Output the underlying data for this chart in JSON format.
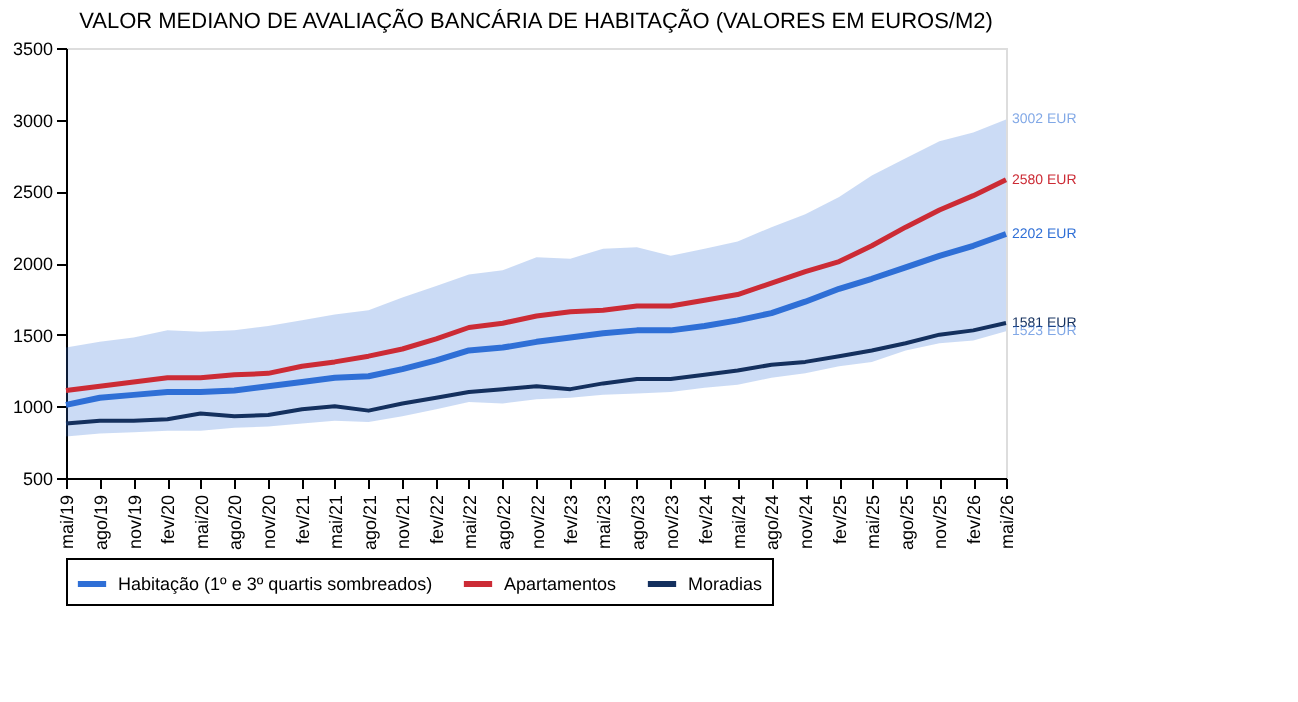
{
  "chart_data": {
    "type": "line",
    "title": "VALOR MEDIANO DE AVALIAÇÃO BANCÁRIA DE HABITAÇÃO (VALORES EM EUROS/M2)",
    "x": [
      "2019-05",
      "2019-08",
      "2019-11",
      "2020-02",
      "2020-05",
      "2020-08",
      "2020-11",
      "2021-02",
      "2021-05",
      "2021-08",
      "2021-11",
      "2022-02",
      "2022-05",
      "2022-08",
      "2022-11",
      "2023-02",
      "2023-05",
      "2023-08",
      "2023-11",
      "2024-02",
      "2024-05",
      "2024-08",
      "2024-11",
      "2025-02",
      "2025-05",
      "2025-08",
      "2025-11",
      "2026-02",
      "2026-05"
    ],
    "series": [
      {
        "name": "Habitação (1º e 3º quartis sombreados)",
        "color": "#2f6fd6",
        "values": [
          1010,
          1060,
          1080,
          1100,
          1100,
          1110,
          1140,
          1170,
          1200,
          1210,
          1260,
          1320,
          1390,
          1410,
          1450,
          1480,
          1510,
          1530,
          1530,
          1560,
          1600,
          1650,
          1730,
          1820,
          1890,
          1970,
          2050,
          2120,
          2202
        ],
        "lower": [
          790,
          810,
          820,
          830,
          830,
          850,
          860,
          880,
          900,
          890,
          930,
          980,
          1030,
          1020,
          1050,
          1060,
          1080,
          1090,
          1100,
          1130,
          1150,
          1200,
          1230,
          1280,
          1310,
          1390,
          1440,
          1460,
          1523
        ],
        "upper": [
          1410,
          1450,
          1480,
          1530,
          1520,
          1530,
          1560,
          1600,
          1640,
          1670,
          1760,
          1840,
          1920,
          1950,
          2040,
          2030,
          2100,
          2110,
          2050,
          2100,
          2150,
          2250,
          2340,
          2460,
          2610,
          2730,
          2850,
          2910,
          3002
        ]
      },
      {
        "name": "Apartamentos",
        "color": "#cc2b35",
        "values": [
          1110,
          1140,
          1170,
          1200,
          1200,
          1220,
          1230,
          1280,
          1310,
          1350,
          1400,
          1470,
          1550,
          1580,
          1630,
          1660,
          1670,
          1700,
          1700,
          1740,
          1780,
          1860,
          1940,
          2010,
          2120,
          2250,
          2370,
          2470,
          2580
        ]
      },
      {
        "name": "Moradias",
        "color": "#14305e",
        "values": [
          880,
          900,
          900,
          910,
          950,
          930,
          940,
          980,
          1000,
          970,
          1020,
          1060,
          1100,
          1120,
          1140,
          1120,
          1160,
          1190,
          1190,
          1220,
          1250,
          1290,
          1310,
          1350,
          1390,
          1440,
          1500,
          1530,
          1581
        ]
      }
    ],
    "annotations": [
      {
        "text": "3002 EUR",
        "x": "2026-05",
        "y": 3002
      },
      {
        "text": "2580 EUR",
        "x": "2026-05",
        "y": 2580
      },
      {
        "text": "2202 EUR",
        "x": "2026-05",
        "y": 2202
      },
      {
        "text": "1581 EUR",
        "x": "2026-05",
        "y": 1581
      },
      {
        "text": "1523 EUR",
        "x": "2026-05",
        "y": 1523
      }
    ],
    "xlim": [
      "2019-05",
      "2026-05"
    ],
    "xticks": [
      {
        "value": "2019-05",
        "label": "mai/19"
      },
      {
        "value": "2019-08",
        "label": "ago/19"
      },
      {
        "value": "2019-11",
        "label": "nov/19"
      },
      {
        "value": "2020-02",
        "label": "fev/20"
      },
      {
        "value": "2020-05",
        "label": "mai/20"
      },
      {
        "value": "2020-08",
        "label": "ago/20"
      },
      {
        "value": "2020-11",
        "label": "nov/20"
      },
      {
        "value": "2021-02",
        "label": "fev/21"
      },
      {
        "value": "2021-05",
        "label": "mai/21"
      },
      {
        "value": "2021-08",
        "label": "ago/21"
      },
      {
        "value": "2021-11",
        "label": "nov/21"
      },
      {
        "value": "2022-02",
        "label": "fev/22"
      },
      {
        "value": "2022-05",
        "label": "mai/22"
      },
      {
        "value": "2022-08",
        "label": "ago/22"
      },
      {
        "value": "2022-11",
        "label": "nov/22"
      },
      {
        "value": "2023-02",
        "label": "fev/23"
      },
      {
        "value": "2023-05",
        "label": "mai/23"
      },
      {
        "value": "2023-08",
        "label": "ago/23"
      },
      {
        "value": "2023-11",
        "label": "nov/23"
      },
      {
        "value": "2024-02",
        "label": "fev/24"
      },
      {
        "value": "2024-05",
        "label": "mai/24"
      },
      {
        "value": "2024-08",
        "label": "ago/24"
      },
      {
        "value": "2024-11",
        "label": "nov/24"
      },
      {
        "value": "2025-02",
        "label": "fev/25"
      },
      {
        "value": "2025-05",
        "label": "mai/25"
      },
      {
        "value": "2025-08",
        "label": "ago/25"
      },
      {
        "value": "2025-11",
        "label": "nov/25"
      },
      {
        "value": "2026-02",
        "label": "fev/26"
      },
      {
        "value": "2026-05",
        "label": "mai/26"
      }
    ],
    "ylim": [
      500,
      3500
    ],
    "yticks": [
      500,
      1000,
      1500,
      2000,
      2500,
      3000,
      3500
    ],
    "grid": false,
    "legend": "bottom",
    "marker": "none",
    "line_style": "solid"
  }
}
